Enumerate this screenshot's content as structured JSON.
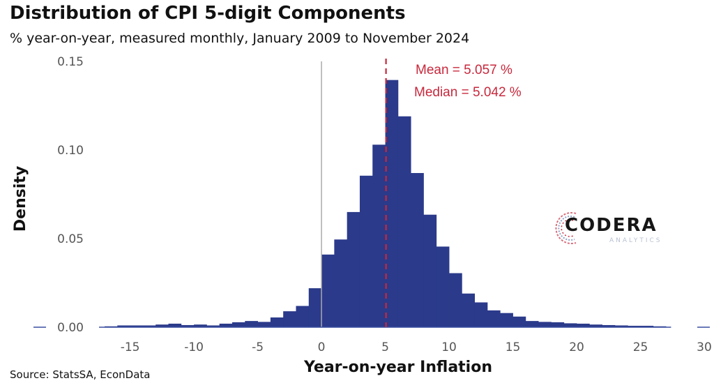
{
  "header": {
    "title": "Distribution of CPI 5-digit Components",
    "subtitle": "% year-on-year, measured monthly, January 2009 to November 2024"
  },
  "footer": {
    "source": "Source: StatsSA, EconData"
  },
  "logo": {
    "wordmark": "CODERA",
    "tagline": "ANALYTICS"
  },
  "chart_data": {
    "type": "bar",
    "xlabel": "Year-on-year Inflation",
    "ylabel": "Density",
    "xlim": [
      -17,
      30
    ],
    "ylim": [
      0,
      0.15
    ],
    "x_ticks": [
      -15,
      -10,
      -5,
      0,
      5,
      10,
      15,
      20,
      25,
      30
    ],
    "y_ticks": [
      {
        "value": 0.0,
        "label": "0.00"
      },
      {
        "value": 0.05,
        "label": "0.05"
      },
      {
        "value": 0.1,
        "label": "0.10"
      },
      {
        "value": 0.15,
        "label": "0.15"
      }
    ],
    "bin_width": 1,
    "bins": [
      {
        "x0": -17,
        "density": 0.0005
      },
      {
        "x0": -16,
        "density": 0.001
      },
      {
        "x0": -15,
        "density": 0.001
      },
      {
        "x0": -14,
        "density": 0.001
      },
      {
        "x0": -13,
        "density": 0.0015
      },
      {
        "x0": -12,
        "density": 0.002
      },
      {
        "x0": -11,
        "density": 0.0012
      },
      {
        "x0": -10,
        "density": 0.0015
      },
      {
        "x0": -9,
        "density": 0.001
      },
      {
        "x0": -8,
        "density": 0.002
      },
      {
        "x0": -7,
        "density": 0.0028
      },
      {
        "x0": -6,
        "density": 0.0035
      },
      {
        "x0": -5,
        "density": 0.003
      },
      {
        "x0": -4,
        "density": 0.0055
      },
      {
        "x0": -3,
        "density": 0.009
      },
      {
        "x0": -2,
        "density": 0.012
      },
      {
        "x0": -1,
        "density": 0.022
      },
      {
        "x0": 0,
        "density": 0.041
      },
      {
        "x0": 1,
        "density": 0.0495
      },
      {
        "x0": 2,
        "density": 0.065
      },
      {
        "x0": 3,
        "density": 0.0855
      },
      {
        "x0": 4,
        "density": 0.103
      },
      {
        "x0": 5,
        "density": 0.1395
      },
      {
        "x0": 6,
        "density": 0.119
      },
      {
        "x0": 7,
        "density": 0.087
      },
      {
        "x0": 8,
        "density": 0.0635
      },
      {
        "x0": 9,
        "density": 0.0455
      },
      {
        "x0": 10,
        "density": 0.0305
      },
      {
        "x0": 11,
        "density": 0.019
      },
      {
        "x0": 12,
        "density": 0.014
      },
      {
        "x0": 13,
        "density": 0.0095
      },
      {
        "x0": 14,
        "density": 0.008
      },
      {
        "x0": 15,
        "density": 0.006
      },
      {
        "x0": 16,
        "density": 0.0035
      },
      {
        "x0": 17,
        "density": 0.003
      },
      {
        "x0": 18,
        "density": 0.0028
      },
      {
        "x0": 19,
        "density": 0.0022
      },
      {
        "x0": 20,
        "density": 0.002
      },
      {
        "x0": 21,
        "density": 0.0015
      },
      {
        "x0": 22,
        "density": 0.0012
      },
      {
        "x0": 23,
        "density": 0.001
      },
      {
        "x0": 24,
        "density": 0.0008
      },
      {
        "x0": 25,
        "density": 0.0008
      },
      {
        "x0": 26,
        "density": 0.0005
      }
    ],
    "mean": 5.057,
    "median": 5.042,
    "annotations": [
      "Mean = 5.057 %",
      "Median = 5.042 %"
    ],
    "reference_line_x": 0,
    "grid": false,
    "colors": {
      "bar": "#2b3a8a",
      "mean_line": "#c8283c",
      "zero_line": "#aaaaaa",
      "baseline": "#3a4fa0"
    }
  }
}
